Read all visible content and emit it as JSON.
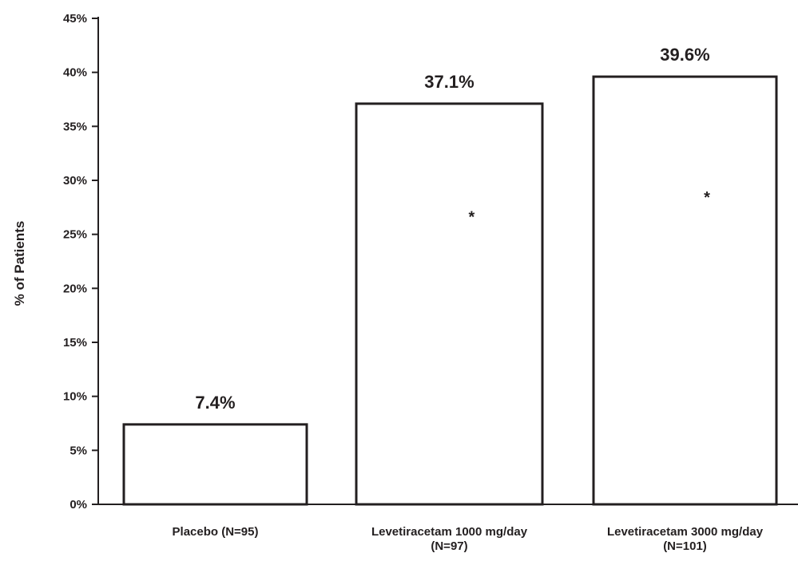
{
  "chart_data": {
    "type": "bar",
    "ylabel": "% of Patients",
    "xlabel": "",
    "ylim": [
      0,
      45
    ],
    "yticks": [
      0,
      5,
      10,
      15,
      20,
      25,
      30,
      35,
      40,
      45
    ],
    "ytick_format": "{v}%",
    "categories": [
      [
        "Placebo (N=95)"
      ],
      [
        "Levetiracetam 1000 mg/day",
        "(N=97)"
      ],
      [
        "Levetiracetam 3000 mg/day",
        "(N=101)"
      ]
    ],
    "values": [
      7.4,
      37.1,
      39.6
    ],
    "data_labels": [
      "7.4%",
      "37.1%",
      "39.6%"
    ],
    "significance_marker": "*",
    "significant": [
      false,
      true,
      true
    ],
    "grid": false,
    "legend": false,
    "colors": {
      "bar_fill": "#ffffff",
      "bar_stroke": "#231f20",
      "axis": "#231f20",
      "text": "#231f20"
    }
  }
}
